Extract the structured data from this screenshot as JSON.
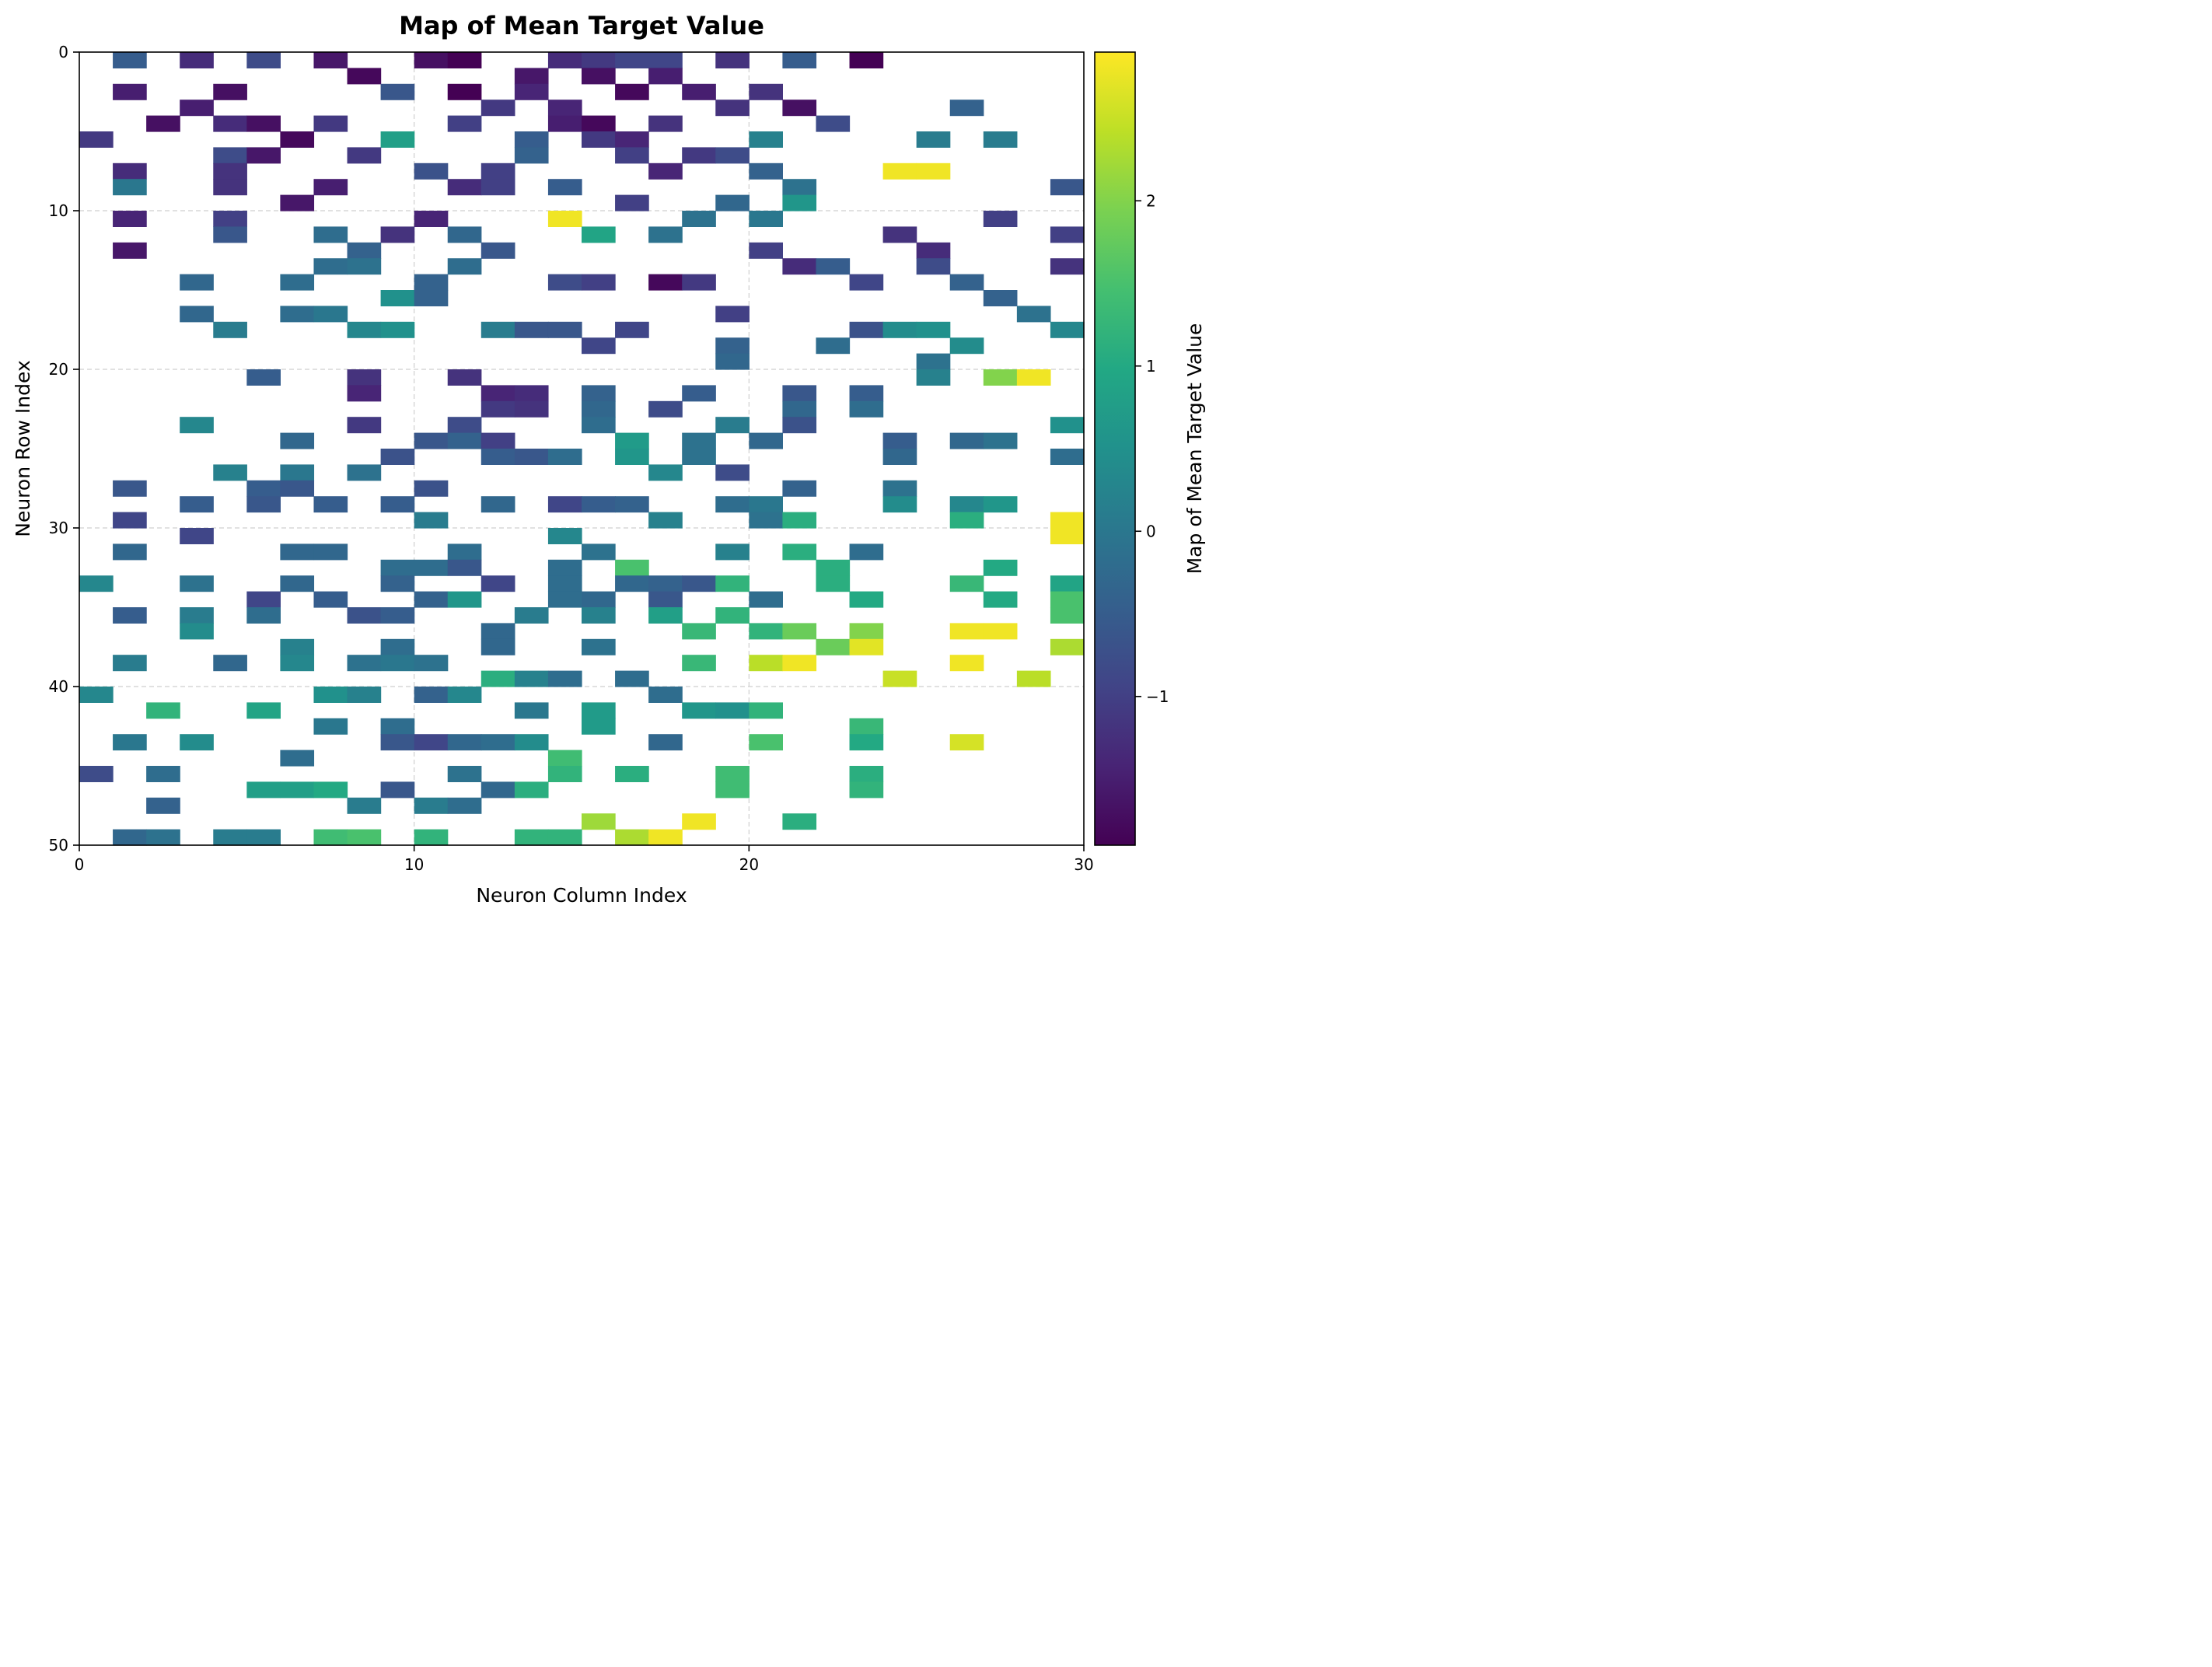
{
  "chart_data": {
    "type": "heatmap",
    "title": "Map of Mean Target Value",
    "xlabel": "Neuron Column Index",
    "ylabel": "Neuron Row Index",
    "colorbar_label": "Map of Mean Target Value",
    "colormap": "viridis",
    "xlim": [
      0,
      30
    ],
    "ylim": [
      50,
      0
    ],
    "x_ticks": [
      0,
      10,
      20,
      30
    ],
    "y_ticks": [
      0,
      10,
      20,
      30,
      40,
      50
    ],
    "colorbar_ticks": [
      -1,
      0,
      1,
      2
    ],
    "colorbar_range": [
      -1.9,
      2.9
    ],
    "grid": true,
    "missing_cells": "white (no data)",
    "cell_format": "[column, row, mean target value]",
    "cells": [
      [
        1,
        0,
        -0.5
      ],
      [
        3,
        0,
        -1.3
      ],
      [
        5,
        0,
        -0.8
      ],
      [
        7,
        0,
        -1.6
      ],
      [
        10,
        0,
        -1.7
      ],
      [
        11,
        0,
        -1.9
      ],
      [
        14,
        0,
        -1.3
      ],
      [
        15,
        0,
        -1.1
      ],
      [
        16,
        0,
        -0.9
      ],
      [
        17,
        0,
        -0.9
      ],
      [
        19,
        0,
        -1.2
      ],
      [
        21,
        0,
        -0.5
      ],
      [
        23,
        0,
        -1.9
      ],
      [
        8,
        1,
        -1.8
      ],
      [
        13,
        1,
        -1.6
      ],
      [
        15,
        1,
        -1.7
      ],
      [
        17,
        1,
        -1.5
      ],
      [
        1,
        2,
        -1.5
      ],
      [
        4,
        2,
        -1.7
      ],
      [
        9,
        2,
        -0.6
      ],
      [
        11,
        2,
        -1.9
      ],
      [
        13,
        2,
        -1.4
      ],
      [
        16,
        2,
        -1.8
      ],
      [
        18,
        2,
        -1.5
      ],
      [
        20,
        2,
        -1.2
      ],
      [
        3,
        3,
        -1.5
      ],
      [
        12,
        3,
        -1.1
      ],
      [
        14,
        3,
        -1.4
      ],
      [
        19,
        3,
        -1.2
      ],
      [
        21,
        3,
        -1.7
      ],
      [
        26,
        3,
        -0.4
      ],
      [
        2,
        4,
        -1.7
      ],
      [
        4,
        4,
        -1.3
      ],
      [
        5,
        4,
        -1.7
      ],
      [
        7,
        4,
        -1.1
      ],
      [
        11,
        4,
        -1.0
      ],
      [
        14,
        4,
        -1.5
      ],
      [
        15,
        4,
        -1.8
      ],
      [
        17,
        4,
        -1.2
      ],
      [
        22,
        4,
        -0.8
      ],
      [
        0,
        5,
        -1.1
      ],
      [
        6,
        5,
        -1.8
      ],
      [
        9,
        5,
        0.8
      ],
      [
        13,
        5,
        -0.5
      ],
      [
        15,
        5,
        -1.1
      ],
      [
        16,
        5,
        -1.4
      ],
      [
        20,
        5,
        0.2
      ],
      [
        25,
        5,
        0.1
      ],
      [
        27,
        5,
        0.1
      ],
      [
        4,
        6,
        -0.8
      ],
      [
        5,
        6,
        -1.6
      ],
      [
        8,
        6,
        -1.1
      ],
      [
        13,
        6,
        -0.4
      ],
      [
        16,
        6,
        -1.0
      ],
      [
        18,
        6,
        -1.1
      ],
      [
        19,
        6,
        -0.8
      ],
      [
        1,
        7,
        -1.3
      ],
      [
        4,
        7,
        -1.2
      ],
      [
        10,
        7,
        -0.7
      ],
      [
        12,
        7,
        -1.0
      ],
      [
        17,
        7,
        -1.4
      ],
      [
        20,
        7,
        -0.4
      ],
      [
        24,
        7,
        2.8
      ],
      [
        25,
        7,
        2.8
      ],
      [
        1,
        8,
        0.0
      ],
      [
        4,
        8,
        -1.2
      ],
      [
        7,
        8,
        -1.5
      ],
      [
        11,
        8,
        -1.3
      ],
      [
        12,
        8,
        -1.0
      ],
      [
        14,
        8,
        -0.5
      ],
      [
        21,
        8,
        -0.1
      ],
      [
        29,
        8,
        -0.6
      ],
      [
        6,
        9,
        -1.6
      ],
      [
        16,
        9,
        -1.0
      ],
      [
        19,
        9,
        -0.3
      ],
      [
        21,
        9,
        0.6
      ],
      [
        1,
        10,
        -1.4
      ],
      [
        4,
        10,
        -1.0
      ],
      [
        10,
        10,
        -1.4
      ],
      [
        14,
        10,
        2.8
      ],
      [
        18,
        10,
        -0.1
      ],
      [
        20,
        10,
        0.0
      ],
      [
        27,
        10,
        -1.0
      ],
      [
        4,
        11,
        -0.6
      ],
      [
        7,
        11,
        -0.2
      ],
      [
        9,
        11,
        -1.2
      ],
      [
        11,
        11,
        -0.3
      ],
      [
        15,
        11,
        0.9
      ],
      [
        17,
        11,
        -0.1
      ],
      [
        24,
        11,
        -1.2
      ],
      [
        29,
        11,
        -1.0
      ],
      [
        1,
        12,
        -1.6
      ],
      [
        8,
        12,
        -0.4
      ],
      [
        12,
        12,
        -0.6
      ],
      [
        20,
        12,
        -1.0
      ],
      [
        25,
        12,
        -1.3
      ],
      [
        7,
        13,
        -0.2
      ],
      [
        8,
        13,
        -0.1
      ],
      [
        11,
        13,
        -0.2
      ],
      [
        21,
        13,
        -1.3
      ],
      [
        22,
        13,
        -0.5
      ],
      [
        25,
        13,
        -0.8
      ],
      [
        29,
        13,
        -1.2
      ],
      [
        3,
        14,
        -0.3
      ],
      [
        6,
        14,
        -0.2
      ],
      [
        10,
        14,
        -0.4
      ],
      [
        14,
        14,
        -0.8
      ],
      [
        15,
        14,
        -1.0
      ],
      [
        17,
        14,
        -1.8
      ],
      [
        18,
        14,
        -1.1
      ],
      [
        23,
        14,
        -0.9
      ],
      [
        26,
        14,
        -0.4
      ],
      [
        9,
        15,
        0.5
      ],
      [
        10,
        15,
        -0.4
      ],
      [
        27,
        15,
        -0.4
      ],
      [
        3,
        16,
        -0.3
      ],
      [
        6,
        16,
        -0.2
      ],
      [
        7,
        16,
        0.0
      ],
      [
        19,
        16,
        -1.0
      ],
      [
        28,
        16,
        -0.1
      ],
      [
        4,
        17,
        0.1
      ],
      [
        8,
        17,
        0.3
      ],
      [
        9,
        17,
        0.5
      ],
      [
        12,
        17,
        0.1
      ],
      [
        13,
        17,
        -0.6
      ],
      [
        14,
        17,
        -0.6
      ],
      [
        16,
        17,
        -0.9
      ],
      [
        23,
        17,
        -0.7
      ],
      [
        24,
        17,
        0.4
      ],
      [
        25,
        17,
        0.5
      ],
      [
        29,
        17,
        0.3
      ],
      [
        15,
        18,
        -0.9
      ],
      [
        19,
        18,
        -0.4
      ],
      [
        22,
        18,
        -0.2
      ],
      [
        26,
        18,
        0.4
      ],
      [
        19,
        19,
        -0.3
      ],
      [
        25,
        19,
        -0.1
      ],
      [
        5,
        20,
        -0.5
      ],
      [
        8,
        20,
        -1.2
      ],
      [
        11,
        20,
        -1.2
      ],
      [
        25,
        20,
        0.2
      ],
      [
        27,
        20,
        2.0
      ],
      [
        28,
        20,
        2.8
      ],
      [
        8,
        21,
        -1.4
      ],
      [
        12,
        21,
        -1.4
      ],
      [
        13,
        21,
        -1.3
      ],
      [
        15,
        21,
        -0.4
      ],
      [
        18,
        21,
        -0.5
      ],
      [
        21,
        21,
        -0.6
      ],
      [
        23,
        21,
        -0.5
      ],
      [
        12,
        22,
        -1.1
      ],
      [
        13,
        22,
        -1.2
      ],
      [
        15,
        22,
        -0.3
      ],
      [
        17,
        22,
        -0.8
      ],
      [
        21,
        22,
        -0.3
      ],
      [
        23,
        22,
        -0.2
      ],
      [
        3,
        23,
        0.3
      ],
      [
        8,
        23,
        -1.1
      ],
      [
        11,
        23,
        -0.8
      ],
      [
        15,
        23,
        -0.2
      ],
      [
        19,
        23,
        0.1
      ],
      [
        21,
        23,
        -0.7
      ],
      [
        29,
        23,
        0.5
      ],
      [
        6,
        24,
        -0.3
      ],
      [
        10,
        24,
        -0.6
      ],
      [
        11,
        24,
        -0.4
      ],
      [
        12,
        24,
        -1.0
      ],
      [
        16,
        24,
        0.7
      ],
      [
        18,
        24,
        -0.1
      ],
      [
        20,
        24,
        -0.3
      ],
      [
        24,
        24,
        -0.5
      ],
      [
        26,
        24,
        -0.3
      ],
      [
        27,
        24,
        -0.1
      ],
      [
        9,
        25,
        -0.7
      ],
      [
        12,
        25,
        -0.5
      ],
      [
        13,
        25,
        -0.6
      ],
      [
        14,
        25,
        -0.2
      ],
      [
        16,
        25,
        0.6
      ],
      [
        18,
        25,
        -0.1
      ],
      [
        24,
        25,
        -0.3
      ],
      [
        29,
        25,
        -0.2
      ],
      [
        4,
        26,
        0.2
      ],
      [
        6,
        26,
        0.0
      ],
      [
        8,
        26,
        -0.1
      ],
      [
        17,
        26,
        0.3
      ],
      [
        19,
        26,
        -0.8
      ],
      [
        1,
        27,
        -0.6
      ],
      [
        5,
        27,
        -0.5
      ],
      [
        6,
        27,
        -0.6
      ],
      [
        10,
        27,
        -0.7
      ],
      [
        21,
        27,
        -0.4
      ],
      [
        24,
        27,
        -0.1
      ],
      [
        3,
        28,
        -0.5
      ],
      [
        5,
        28,
        -0.6
      ],
      [
        7,
        28,
        -0.5
      ],
      [
        9,
        28,
        -0.5
      ],
      [
        12,
        28,
        -0.3
      ],
      [
        14,
        28,
        -0.9
      ],
      [
        15,
        28,
        -0.5
      ],
      [
        16,
        28,
        -0.4
      ],
      [
        19,
        28,
        -0.2
      ],
      [
        20,
        28,
        0.0
      ],
      [
        24,
        28,
        0.4
      ],
      [
        26,
        28,
        0.3
      ],
      [
        27,
        28,
        0.6
      ],
      [
        1,
        29,
        -0.9
      ],
      [
        10,
        29,
        0.1
      ],
      [
        17,
        29,
        0.2
      ],
      [
        20,
        29,
        -0.1
      ],
      [
        21,
        29,
        1.1
      ],
      [
        26,
        29,
        1.1
      ],
      [
        29,
        29,
        2.8
      ],
      [
        3,
        30,
        -0.9
      ],
      [
        14,
        30,
        0.3
      ],
      [
        29,
        30,
        2.8
      ],
      [
        1,
        31,
        -0.3
      ],
      [
        6,
        31,
        -0.3
      ],
      [
        7,
        31,
        -0.3
      ],
      [
        11,
        31,
        -0.2
      ],
      [
        15,
        31,
        -0.1
      ],
      [
        19,
        31,
        0.2
      ],
      [
        21,
        31,
        1.1
      ],
      [
        23,
        31,
        -0.2
      ],
      [
        9,
        32,
        -0.2
      ],
      [
        10,
        32,
        -0.2
      ],
      [
        11,
        32,
        -0.6
      ],
      [
        14,
        32,
        -0.2
      ],
      [
        16,
        32,
        1.5
      ],
      [
        22,
        32,
        1.1
      ],
      [
        27,
        32,
        1.0
      ],
      [
        0,
        33,
        0.3
      ],
      [
        3,
        33,
        -0.1
      ],
      [
        6,
        33,
        -0.3
      ],
      [
        9,
        33,
        -0.4
      ],
      [
        12,
        33,
        -0.9
      ],
      [
        14,
        33,
        -0.2
      ],
      [
        16,
        33,
        -0.3
      ],
      [
        17,
        33,
        -0.4
      ],
      [
        18,
        33,
        -0.6
      ],
      [
        19,
        33,
        1.2
      ],
      [
        22,
        33,
        1.1
      ],
      [
        26,
        33,
        1.3
      ],
      [
        29,
        33,
        0.9
      ],
      [
        5,
        34,
        -0.9
      ],
      [
        7,
        34,
        -0.5
      ],
      [
        10,
        34,
        -0.4
      ],
      [
        11,
        34,
        0.6
      ],
      [
        14,
        34,
        -0.2
      ],
      [
        15,
        34,
        -0.3
      ],
      [
        17,
        34,
        -0.6
      ],
      [
        20,
        34,
        -0.2
      ],
      [
        23,
        34,
        1.0
      ],
      [
        27,
        34,
        1.0
      ],
      [
        29,
        34,
        1.5
      ],
      [
        1,
        35,
        -0.5
      ],
      [
        3,
        35,
        0.1
      ],
      [
        5,
        35,
        -0.2
      ],
      [
        8,
        35,
        -0.7
      ],
      [
        9,
        35,
        -0.5
      ],
      [
        13,
        35,
        0.1
      ],
      [
        15,
        35,
        0.2
      ],
      [
        17,
        35,
        0.8
      ],
      [
        19,
        35,
        1.2
      ],
      [
        29,
        35,
        1.5
      ],
      [
        3,
        36,
        0.4
      ],
      [
        12,
        36,
        -0.3
      ],
      [
        18,
        36,
        1.3
      ],
      [
        20,
        36,
        1.2
      ],
      [
        21,
        36,
        1.8
      ],
      [
        23,
        36,
        2.0
      ],
      [
        26,
        36,
        2.8
      ],
      [
        27,
        36,
        2.8
      ],
      [
        6,
        37,
        0.2
      ],
      [
        9,
        37,
        -0.2
      ],
      [
        12,
        37,
        -0.3
      ],
      [
        15,
        37,
        -0.1
      ],
      [
        22,
        37,
        1.8
      ],
      [
        23,
        37,
        2.7
      ],
      [
        29,
        37,
        2.3
      ],
      [
        1,
        38,
        0.1
      ],
      [
        4,
        38,
        -0.3
      ],
      [
        6,
        38,
        0.3
      ],
      [
        8,
        38,
        -0.1
      ],
      [
        9,
        38,
        0.0
      ],
      [
        10,
        38,
        -0.1
      ],
      [
        18,
        38,
        1.3
      ],
      [
        20,
        38,
        2.4
      ],
      [
        21,
        38,
        2.8
      ],
      [
        26,
        38,
        2.8
      ],
      [
        12,
        39,
        1.1
      ],
      [
        13,
        39,
        0.2
      ],
      [
        14,
        39,
        -0.2
      ],
      [
        16,
        39,
        -0.2
      ],
      [
        24,
        39,
        2.5
      ],
      [
        28,
        39,
        2.4
      ],
      [
        0,
        40,
        0.3
      ],
      [
        7,
        40,
        0.5
      ],
      [
        8,
        40,
        0.2
      ],
      [
        10,
        40,
        -0.4
      ],
      [
        11,
        40,
        0.3
      ],
      [
        17,
        40,
        -0.2
      ],
      [
        2,
        41,
        1.2
      ],
      [
        5,
        41,
        0.9
      ],
      [
        13,
        41,
        0.0
      ],
      [
        15,
        41,
        0.7
      ],
      [
        18,
        41,
        0.6
      ],
      [
        19,
        41,
        0.5
      ],
      [
        20,
        41,
        1.2
      ],
      [
        7,
        42,
        0.0
      ],
      [
        9,
        42,
        -0.2
      ],
      [
        15,
        42,
        0.7
      ],
      [
        23,
        42,
        1.3
      ],
      [
        1,
        43,
        0.0
      ],
      [
        3,
        43,
        0.4
      ],
      [
        9,
        43,
        -0.6
      ],
      [
        10,
        43,
        -0.9
      ],
      [
        11,
        43,
        -0.3
      ],
      [
        12,
        43,
        -0.2
      ],
      [
        13,
        43,
        0.4
      ],
      [
        17,
        43,
        -0.3
      ],
      [
        20,
        43,
        1.5
      ],
      [
        23,
        43,
        1.0
      ],
      [
        26,
        43,
        2.6
      ],
      [
        6,
        44,
        -0.2
      ],
      [
        14,
        44,
        1.4
      ],
      [
        0,
        45,
        -0.8
      ],
      [
        2,
        45,
        -0.2
      ],
      [
        11,
        45,
        -0.1
      ],
      [
        14,
        45,
        1.2
      ],
      [
        16,
        45,
        1.1
      ],
      [
        19,
        45,
        1.4
      ],
      [
        23,
        45,
        1.1
      ],
      [
        5,
        46,
        0.8
      ],
      [
        6,
        46,
        0.8
      ],
      [
        7,
        46,
        1.0
      ],
      [
        9,
        46,
        -0.6
      ],
      [
        12,
        46,
        -0.3
      ],
      [
        13,
        46,
        1.1
      ],
      [
        19,
        46,
        1.4
      ],
      [
        23,
        46,
        1.2
      ],
      [
        2,
        47,
        -0.4
      ],
      [
        8,
        47,
        0.1
      ],
      [
        10,
        47,
        0.1
      ],
      [
        11,
        47,
        -0.2
      ],
      [
        15,
        48,
        2.2
      ],
      [
        18,
        48,
        2.8
      ],
      [
        21,
        48,
        1.1
      ],
      [
        1,
        49,
        -0.3
      ],
      [
        2,
        49,
        -0.1
      ],
      [
        4,
        49,
        0.1
      ],
      [
        5,
        49,
        0.1
      ],
      [
        7,
        49,
        1.4
      ],
      [
        8,
        49,
        1.5
      ],
      [
        10,
        49,
        1.2
      ],
      [
        13,
        49,
        1.2
      ],
      [
        14,
        49,
        1.2
      ],
      [
        16,
        49,
        2.3
      ],
      [
        17,
        49,
        2.8
      ]
    ]
  }
}
